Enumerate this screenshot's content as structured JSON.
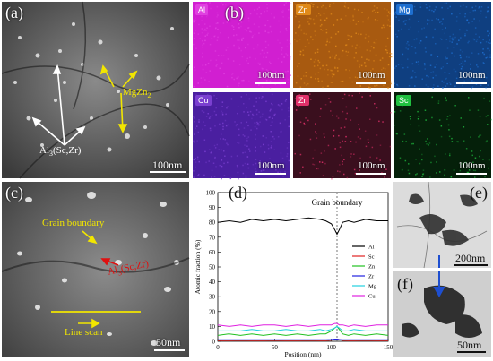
{
  "panels": {
    "a": {
      "label": "(a)",
      "scale": "100nm",
      "annotations": {
        "mgzn2_base": "MgZn",
        "mgzn2_sub": "2",
        "al3_base": "Al",
        "al3_sub": "3",
        "al3_rest": "(Sc,Zr)"
      }
    },
    "b": {
      "label": "(b)",
      "maps": [
        {
          "element": "Al",
          "scale": "100nm",
          "color": "#d11fd1",
          "tag_color": "#e040e0"
        },
        {
          "element": "Zn",
          "scale": "100nm",
          "color": "#a85a10",
          "tag_color": "#e08a1a"
        },
        {
          "element": "Mg",
          "scale": "100nm",
          "color": "#0f3f80",
          "tag_color": "#1e6fd0"
        },
        {
          "element": "Cu",
          "scale": "100nm",
          "color": "#4a1fa0",
          "tag_color": "#7a3fd0"
        },
        {
          "element": "Zr",
          "scale": "100nm",
          "color": "#3a0f1e",
          "tag_color": "#e0306a"
        },
        {
          "element": "Sc",
          "scale": "100nm",
          "color": "#05200a",
          "tag_color": "#20c040"
        }
      ]
    },
    "c": {
      "label": "(c)",
      "scale": "50nm",
      "annotations": {
        "grain_boundary": "Grain boundary",
        "al3_base": "Al",
        "al3_sub": "3",
        "al3_rest": "(Sc,Zr)",
        "line_scan": "Line scan"
      }
    },
    "d": {
      "label": "(d)"
    },
    "e": {
      "label": "(e)",
      "scale": "200nm"
    },
    "f": {
      "label": "(f)",
      "scale": "50nm"
    }
  },
  "chart_data": {
    "type": "line",
    "xlabel": "Position (nm)",
    "ylabel": "Atomic fraction (%)",
    "xlim": [
      0,
      150
    ],
    "ylim": [
      0,
      100
    ],
    "xticks": [
      0,
      50,
      100,
      150
    ],
    "yticks": [
      0,
      10,
      20,
      30,
      40,
      50,
      60,
      70,
      80,
      90,
      100
    ],
    "annotation": {
      "text": "Grain boundary",
      "x": 105
    },
    "legend_position": "right",
    "grid": false,
    "x": [
      0,
      10,
      20,
      30,
      40,
      50,
      60,
      70,
      80,
      90,
      95,
      100,
      103,
      105,
      107,
      110,
      115,
      120,
      130,
      140,
      150
    ],
    "series": [
      {
        "name": "Al",
        "color": "#000000",
        "values": [
          80,
          81,
          80,
          82,
          81,
          82,
          81,
          82,
          83,
          82,
          81,
          79,
          75,
          72,
          75,
          80,
          81,
          80,
          82,
          81,
          81
        ]
      },
      {
        "name": "Sc",
        "color": "#e02020",
        "values": [
          0.5,
          0.5,
          0.6,
          0.5,
          0.5,
          0.6,
          0.5,
          0.5,
          0.6,
          0.5,
          0.5,
          0.8,
          1.2,
          1.5,
          1.2,
          0.6,
          0.5,
          0.5,
          0.6,
          0.5,
          0.5
        ]
      },
      {
        "name": "Zn",
        "color": "#20c020",
        "values": [
          4,
          5,
          4,
          5,
          4,
          5,
          4,
          5,
          4,
          5,
          5,
          7,
          9,
          10,
          8,
          5,
          4,
          5,
          4,
          5,
          4
        ]
      },
      {
        "name": "Zr",
        "color": "#2020e0",
        "values": [
          1,
          1,
          1,
          1,
          1,
          1,
          1,
          1,
          1,
          1,
          1,
          1.2,
          1.5,
          1.5,
          1.2,
          1,
          1,
          1,
          1,
          1,
          1
        ]
      },
      {
        "name": "Mg",
        "color": "#20d0e0",
        "values": [
          7,
          7,
          7,
          8,
          7,
          7,
          8,
          7,
          7,
          8,
          7,
          8,
          9,
          10,
          9,
          7,
          7,
          8,
          7,
          7,
          7
        ]
      },
      {
        "name": "Cu",
        "color": "#e020e0",
        "values": [
          11,
          10,
          11,
          10,
          11,
          11,
          10,
          11,
          10,
          11,
          11,
          11,
          12,
          12,
          11,
          11,
          10,
          11,
          10,
          11,
          11
        ]
      }
    ]
  }
}
